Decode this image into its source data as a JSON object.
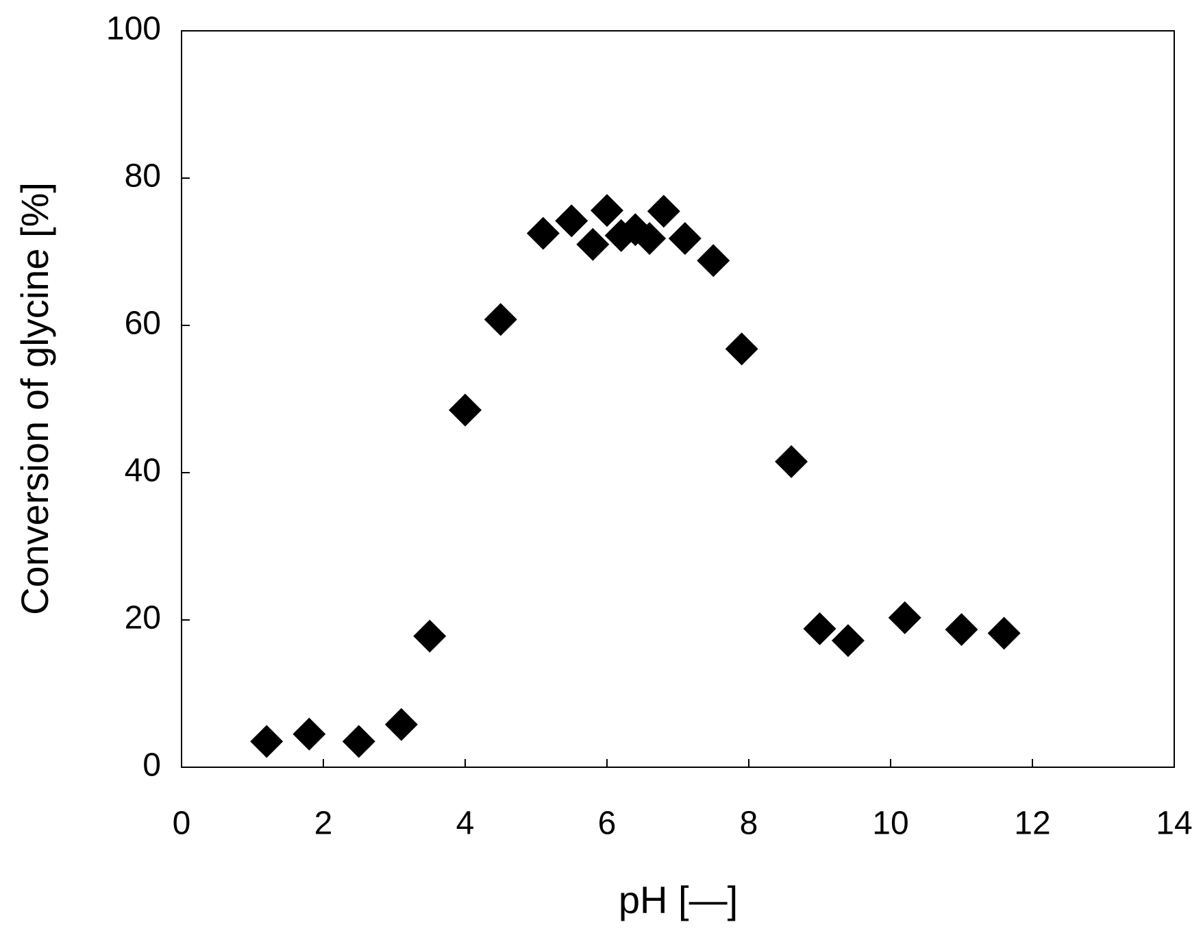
{
  "chart_data": {
    "type": "scatter",
    "x_label": "pH [—]",
    "y_label": "Conversion of glycine [%]",
    "x": [
      1.2,
      1.8,
      2.5,
      3.1,
      3.5,
      4.0,
      4.5,
      5.1,
      5.5,
      5.8,
      6.0,
      6.2,
      6.4,
      6.6,
      6.8,
      7.1,
      7.5,
      7.9,
      8.6,
      9.0,
      9.4,
      10.2,
      11.0,
      11.6
    ],
    "values": [
      3.5,
      4.5,
      3.5,
      5.8,
      17.8,
      48.5,
      60.8,
      72.5,
      74.2,
      71.0,
      75.6,
      72.2,
      73.0,
      71.8,
      75.5,
      71.8,
      68.8,
      56.8,
      41.5,
      18.8,
      17.2,
      20.3,
      18.7,
      18.2
    ],
    "color": "#000000",
    "xlim": [
      0,
      14
    ],
    "xticks": [
      0,
      2,
      4,
      6,
      8,
      10,
      12,
      14
    ],
    "ylim": [
      0,
      100
    ],
    "yticks": [
      0,
      20,
      40,
      60,
      80,
      100
    ],
    "grid": false
  }
}
